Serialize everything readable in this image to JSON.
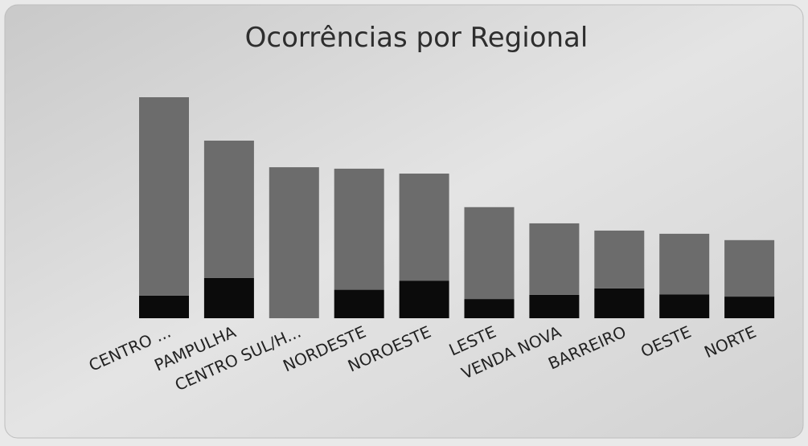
{
  "chart_data": {
    "type": "stacked_bar",
    "title": "Ocorrências por Regional",
    "categories": [
      "CENTRO ...",
      "PAMPULHA",
      "CENTRO SUL/H...",
      "NORDESTE",
      "NOROESTE",
      "LESTE",
      "VENDA NOVA",
      "BARREIRO",
      "OESTE",
      "NORTE"
    ],
    "series": [
      {
        "color": "#0b0b0b",
        "values": [
          392,
          695,
          null,
          492,
          650,
          332,
          404,
          516,
          413,
          374
        ]
      },
      {
        "color": "#6c6c6c",
        "values": [
          3428,
          2375,
          2610,
          2093,
          1850,
          1588,
          1236,
          999,
          1047,
          976
        ]
      }
    ]
  }
}
